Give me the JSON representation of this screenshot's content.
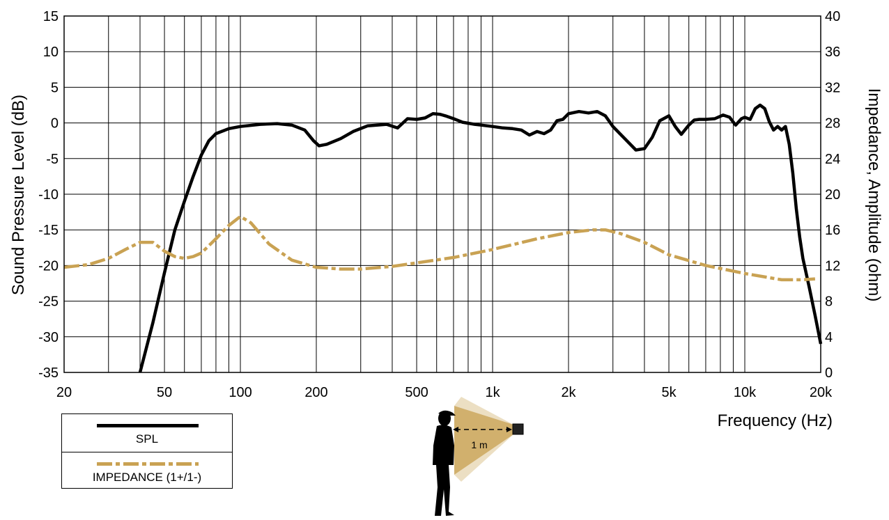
{
  "chart_data": {
    "type": "line",
    "xlabel": "Frequency  (Hz)",
    "ylabel": "Sound Pressure Level (dB)",
    "y2label": "Impedance, Amplitude  (ohm)",
    "x_scale": "log",
    "xlim": [
      20,
      20000
    ],
    "ylim": [
      -35,
      15
    ],
    "y2lim": [
      0,
      40
    ],
    "grid": true,
    "x_tick_labels": [
      {
        "value": 20,
        "label": "20"
      },
      {
        "value": 50,
        "label": "50"
      },
      {
        "value": 100,
        "label": "100"
      },
      {
        "value": 200,
        "label": "200"
      },
      {
        "value": 500,
        "label": "500"
      },
      {
        "value": 1000,
        "label": "1k"
      },
      {
        "value": 2000,
        "label": "2k"
      },
      {
        "value": 5000,
        "label": "5k"
      },
      {
        "value": 10000,
        "label": "10k"
      },
      {
        "value": 20000,
        "label": "20k"
      }
    ],
    "y_ticks": [
      15,
      10,
      5,
      0,
      -5,
      -10,
      -15,
      -20,
      -25,
      -30,
      -35
    ],
    "y2_ticks": [
      40,
      36,
      32,
      28,
      24,
      20,
      16,
      12,
      8,
      4,
      0
    ],
    "series": [
      {
        "name": "SPL",
        "axis": "left",
        "color": "#000000",
        "style": "solid",
        "x": [
          40,
          45,
          50,
          55,
          60,
          65,
          70,
          75,
          80,
          90,
          100,
          120,
          140,
          160,
          180,
          195,
          205,
          220,
          250,
          280,
          320,
          380,
          420,
          460,
          500,
          540,
          580,
          620,
          650,
          700,
          760,
          850,
          900,
          1000,
          1100,
          1200,
          1300,
          1400,
          1500,
          1600,
          1700,
          1800,
          1900,
          2000,
          2200,
          2400,
          2600,
          2800,
          3000,
          3300,
          3700,
          4000,
          4300,
          4600,
          5000,
          5300,
          5600,
          6000,
          6300,
          6600,
          7000,
          7600,
          8200,
          8700,
          9200,
          9700,
          10000,
          10500,
          11000,
          11500,
          12000,
          12500,
          13000,
          13500,
          14000,
          14500,
          15000,
          15500,
          16000,
          16500,
          17000,
          18000,
          19000,
          20000
        ],
        "values": [
          -35,
          -28,
          -21,
          -15,
          -11,
          -7.5,
          -4.5,
          -2.5,
          -1.5,
          -0.8,
          -0.5,
          -0.2,
          -0.1,
          -0.3,
          -1,
          -2.5,
          -3.2,
          -3,
          -2.2,
          -1.2,
          -0.4,
          -0.2,
          -0.7,
          0.6,
          0.5,
          0.7,
          1.3,
          1.2,
          1.0,
          0.6,
          0.1,
          -0.2,
          -0.3,
          -0.5,
          -0.7,
          -0.8,
          -1.0,
          -1.7,
          -1.2,
          -1.5,
          -1.0,
          0.3,
          0.5,
          1.3,
          1.6,
          1.4,
          1.6,
          1.0,
          -0.5,
          -2.0,
          -3.8,
          -3.6,
          -2.0,
          0.3,
          1.0,
          -0.5,
          -1.6,
          -0.3,
          0.4,
          0.5,
          0.5,
          0.6,
          1.1,
          0.8,
          -0.3,
          0.6,
          0.8,
          0.5,
          2.0,
          2.5,
          2.0,
          0.2,
          -1.0,
          -0.5,
          -1.0,
          -0.5,
          -3.0,
          -7.0,
          -12.0,
          -16.0,
          -19.0,
          -23.0,
          -27.0,
          -31.0
        ]
      },
      {
        "name": "IMPEDANCE (1+/1-)",
        "axis": "right",
        "color": "#c9a253",
        "style": "dashdot",
        "x": [
          20,
          25,
          30,
          35,
          40,
          45,
          50,
          55,
          60,
          65,
          70,
          80,
          90,
          100,
          110,
          130,
          160,
          200,
          250,
          300,
          400,
          500,
          700,
          1000,
          1500,
          2000,
          2500,
          2800,
          3200,
          4000,
          5000,
          7000,
          10000,
          14000,
          17000,
          19000
        ],
        "values": [
          11.8,
          12.1,
          12.8,
          13.8,
          14.6,
          14.6,
          13.6,
          13.0,
          12.8,
          13.0,
          13.4,
          15.0,
          16.5,
          17.5,
          16.8,
          14.4,
          12.6,
          11.8,
          11.6,
          11.6,
          11.9,
          12.3,
          12.9,
          13.8,
          15.0,
          15.7,
          16.0,
          16.0,
          15.6,
          14.6,
          13.2,
          12.0,
          11.1,
          10.4,
          10.4,
          10.5
        ]
      }
    ]
  },
  "legend": {
    "items": [
      {
        "label": "SPL",
        "color": "#000000"
      },
      {
        "label": "IMPEDANCE (1+/1-)",
        "color": "#c9a253"
      }
    ]
  },
  "illustration": {
    "distance_label": "1 m",
    "cone_color": "#c9a253"
  }
}
